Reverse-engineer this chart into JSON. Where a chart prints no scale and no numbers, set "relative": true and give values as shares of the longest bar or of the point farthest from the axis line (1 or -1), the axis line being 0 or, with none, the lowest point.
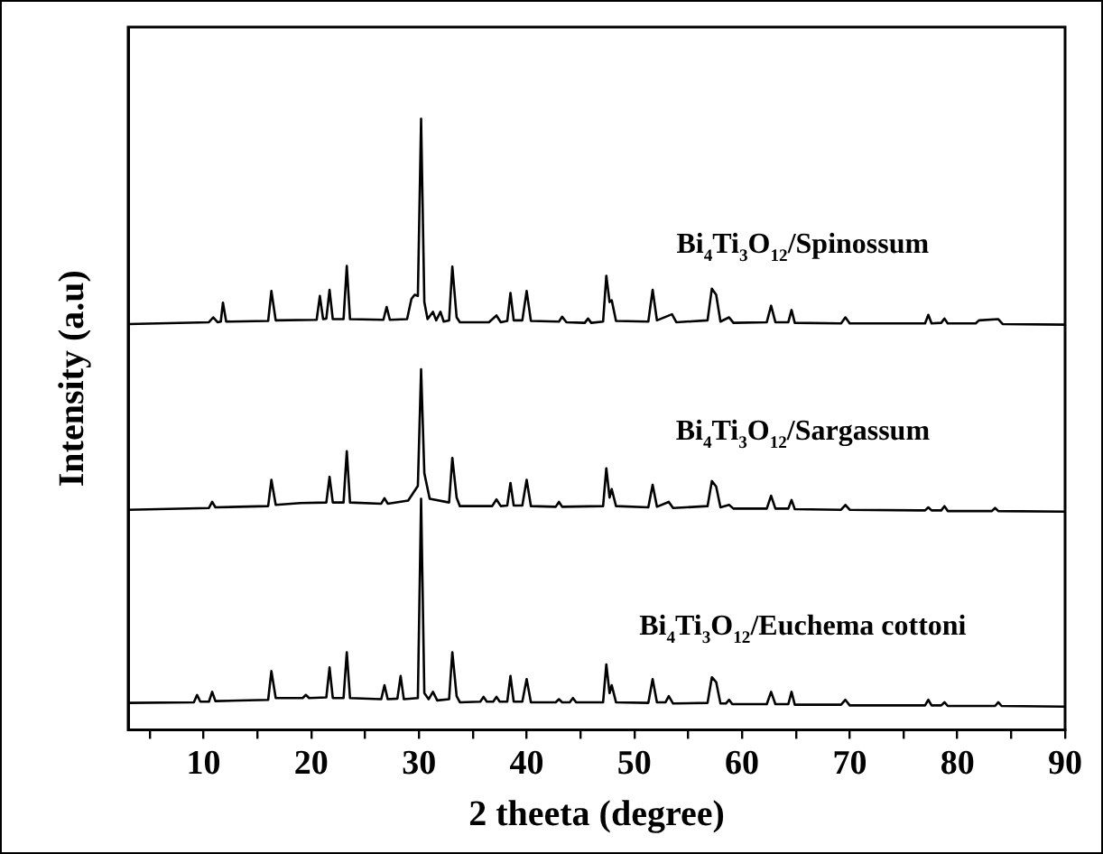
{
  "chart_data": {
    "type": "line",
    "xlabel": "2 theeta (degree)",
    "ylabel": "Intensity (a.u)",
    "relative": true,
    "xlim": [
      3,
      90
    ],
    "xticks": [
      {
        "value": 5,
        "label": null
      },
      10,
      {
        "value": 15,
        "label": null
      },
      20,
      {
        "value": 25,
        "label": null
      },
      30,
      {
        "value": 35,
        "label": null
      },
      40,
      {
        "value": 45,
        "label": null
      },
      50,
      {
        "value": 55,
        "label": null
      },
      60,
      {
        "value": 65,
        "label": null
      },
      70,
      {
        "value": 75,
        "label": null
      },
      80,
      {
        "value": 85,
        "label": null
      },
      90
    ],
    "grid": false,
    "legend": false,
    "marker": "none",
    "line_style": "solid",
    "series": [
      {
        "name": "Bi$_{4}$Ti$_{3}$O$_{12}$/Spinossum",
        "color": "#000000",
        "x": [
          3,
          10.5,
          10.9,
          11.3,
          11.6,
          11.8,
          12.1,
          16.0,
          16.3,
          16.7,
          20.5,
          20.8,
          21.1,
          21.4,
          21.7,
          22.0,
          23.0,
          23.3,
          23.6,
          26.7,
          27.0,
          27.3,
          28.9,
          29.3,
          29.6,
          29.9,
          30.2,
          30.5,
          30.8,
          31.3,
          31.6,
          32.0,
          32.3,
          32.8,
          33.1,
          33.5,
          33.8,
          36.5,
          37.2,
          37.6,
          38.2,
          38.5,
          38.8,
          39.6,
          40.0,
          40.4,
          43.0,
          43.3,
          43.7,
          45.4,
          45.7,
          46.0,
          47.1,
          47.4,
          47.7,
          47.9,
          48.3,
          51.3,
          51.7,
          52.1,
          53.5,
          53.9,
          56.8,
          57.2,
          57.6,
          58.0,
          58.8,
          59.2,
          62.3,
          62.7,
          63.1,
          64.3,
          64.6,
          64.9,
          69.2,
          69.6,
          70.0,
          77.0,
          77.3,
          77.6,
          78.5,
          78.8,
          79.1,
          81.7,
          82.0,
          83.8,
          84.2,
          90
        ],
        "values": [
          0.664,
          0.667,
          0.675,
          0.667,
          0.668,
          0.699,
          0.668,
          0.669,
          0.718,
          0.67,
          0.671,
          0.71,
          0.672,
          0.673,
          0.72,
          0.672,
          0.672,
          0.759,
          0.672,
          0.671,
          0.692,
          0.671,
          0.672,
          0.705,
          0.712,
          0.71,
          1.0,
          0.7,
          0.672,
          0.684,
          0.67,
          0.684,
          0.668,
          0.67,
          0.758,
          0.675,
          0.667,
          0.667,
          0.678,
          0.667,
          0.669,
          0.715,
          0.67,
          0.67,
          0.718,
          0.669,
          0.668,
          0.676,
          0.667,
          0.666,
          0.673,
          0.666,
          0.668,
          0.743,
          0.7,
          0.703,
          0.669,
          0.668,
          0.72,
          0.67,
          0.68,
          0.667,
          0.67,
          0.722,
          0.712,
          0.668,
          0.675,
          0.666,
          0.667,
          0.694,
          0.667,
          0.667,
          0.687,
          0.666,
          0.665,
          0.675,
          0.665,
          0.665,
          0.679,
          0.665,
          0.666,
          0.673,
          0.665,
          0.665,
          0.67,
          0.672,
          0.664,
          0.663
        ]
      },
      {
        "name": "Bi$_{4}$Ti$_{3}$O$_{12}$/Sargassum",
        "color": "#000000",
        "x": [
          3,
          10.5,
          10.8,
          11.1,
          16.0,
          16.3,
          16.7,
          19.0,
          21.4,
          21.7,
          22.0,
          23.0,
          23.3,
          23.6,
          26.5,
          26.8,
          27.1,
          29.0,
          29.9,
          30.2,
          30.5,
          31.0,
          32.8,
          33.1,
          33.5,
          33.8,
          36.8,
          37.2,
          37.6,
          38.2,
          38.5,
          38.8,
          39.6,
          40.0,
          40.4,
          42.7,
          43.0,
          43.3,
          47.1,
          47.4,
          47.7,
          47.9,
          48.3,
          51.3,
          51.7,
          52.1,
          53.2,
          53.6,
          56.8,
          57.2,
          57.6,
          58.0,
          58.8,
          59.2,
          62.3,
          62.7,
          63.1,
          64.3,
          64.6,
          64.9,
          69.2,
          69.6,
          70.0,
          77.0,
          77.3,
          77.6,
          78.5,
          78.8,
          79.1,
          83.2,
          83.5,
          83.8,
          90
        ],
        "values": [
          0.36,
          0.363,
          0.373,
          0.364,
          0.366,
          0.409,
          0.368,
          0.371,
          0.372,
          0.414,
          0.372,
          0.372,
          0.456,
          0.372,
          0.37,
          0.379,
          0.37,
          0.375,
          0.399,
          0.59,
          0.42,
          0.378,
          0.372,
          0.445,
          0.38,
          0.366,
          0.366,
          0.377,
          0.366,
          0.367,
          0.404,
          0.367,
          0.367,
          0.409,
          0.366,
          0.365,
          0.373,
          0.365,
          0.366,
          0.428,
          0.38,
          0.394,
          0.366,
          0.364,
          0.401,
          0.365,
          0.373,
          0.363,
          0.366,
          0.407,
          0.398,
          0.364,
          0.368,
          0.362,
          0.362,
          0.383,
          0.362,
          0.362,
          0.376,
          0.361,
          0.36,
          0.368,
          0.36,
          0.359,
          0.364,
          0.359,
          0.359,
          0.366,
          0.358,
          0.358,
          0.363,
          0.358,
          0.357
        ]
      },
      {
        "name": "Bi$_{4}$Ti$_{3}$O$_{12}$/Euchema cottoni",
        "color": "#000000",
        "x": [
          3,
          9.1,
          9.4,
          9.7,
          10.5,
          10.8,
          11.1,
          16.0,
          16.3,
          16.7,
          19.2,
          19.5,
          19.8,
          21.4,
          21.7,
          22.0,
          23.0,
          23.3,
          23.6,
          26.5,
          26.8,
          27.1,
          28.0,
          28.3,
          28.6,
          29.9,
          30.2,
          30.5,
          30.9,
          31.3,
          31.7,
          32.8,
          33.1,
          33.5,
          33.8,
          35.7,
          36.0,
          36.3,
          36.9,
          37.2,
          37.5,
          38.2,
          38.5,
          38.8,
          39.6,
          40.0,
          40.4,
          42.7,
          43.0,
          43.3,
          44.0,
          44.3,
          44.6,
          47.1,
          47.4,
          47.7,
          47.9,
          48.3,
          51.3,
          51.7,
          52.1,
          52.9,
          53.2,
          53.6,
          56.8,
          57.2,
          57.6,
          58.0,
          58.5,
          58.8,
          59.1,
          62.3,
          62.7,
          63.1,
          64.3,
          64.6,
          64.9,
          69.2,
          69.6,
          70.0,
          77.0,
          77.3,
          77.6,
          78.5,
          78.8,
          79.1,
          83.5,
          83.8,
          84.1,
          90
        ],
        "values": [
          0.044,
          0.045,
          0.057,
          0.046,
          0.046,
          0.062,
          0.047,
          0.049,
          0.096,
          0.052,
          0.052,
          0.057,
          0.052,
          0.053,
          0.102,
          0.052,
          0.052,
          0.127,
          0.052,
          0.05,
          0.073,
          0.05,
          0.051,
          0.088,
          0.05,
          0.052,
          0.378,
          0.06,
          0.05,
          0.062,
          0.048,
          0.05,
          0.127,
          0.055,
          0.045,
          0.046,
          0.054,
          0.046,
          0.046,
          0.054,
          0.046,
          0.046,
          0.088,
          0.046,
          0.046,
          0.083,
          0.045,
          0.045,
          0.05,
          0.045,
          0.045,
          0.052,
          0.045,
          0.045,
          0.107,
          0.06,
          0.073,
          0.045,
          0.044,
          0.083,
          0.045,
          0.045,
          0.055,
          0.043,
          0.044,
          0.086,
          0.078,
          0.043,
          0.043,
          0.049,
          0.042,
          0.042,
          0.062,
          0.042,
          0.042,
          0.062,
          0.041,
          0.041,
          0.049,
          0.04,
          0.04,
          0.049,
          0.04,
          0.04,
          0.045,
          0.039,
          0.039,
          0.045,
          0.039,
          0.038
        ]
      }
    ]
  }
}
